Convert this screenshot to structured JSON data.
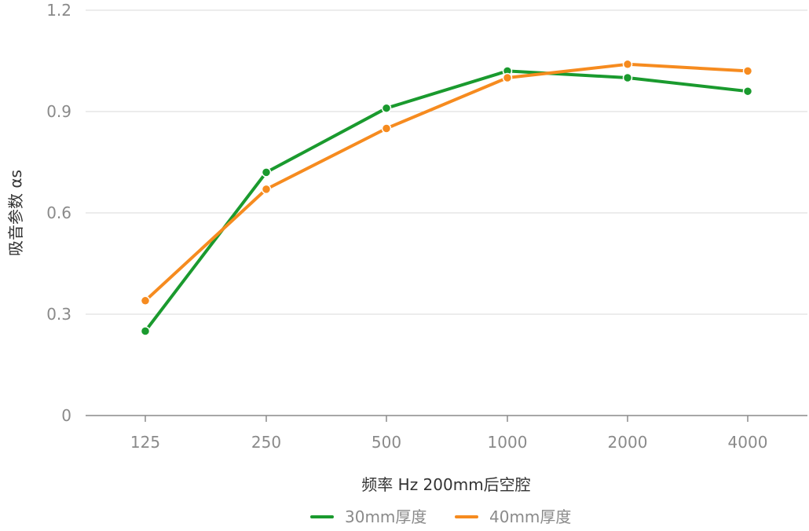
{
  "chart_data": {
    "type": "line",
    "title": "",
    "xlabel": "频率 Hz  200mm后空腔",
    "ylabel": "吸音参数 αs",
    "categories": [
      "125",
      "250",
      "500",
      "1000",
      "2000",
      "4000"
    ],
    "ylim": [
      0,
      1.2
    ],
    "yticks": [
      "0",
      "0.3",
      "0.6",
      "0.9",
      "1.2"
    ],
    "grid": true,
    "legend_position": "bottom",
    "series": [
      {
        "name": "30mm厚度",
        "color": "#1a9a2e",
        "values": [
          0.25,
          0.72,
          0.91,
          1.02,
          1.0,
          0.96
        ]
      },
      {
        "name": "40mm厚度",
        "color": "#f68b1f",
        "values": [
          0.34,
          0.67,
          0.85,
          1.0,
          1.04,
          1.02
        ]
      }
    ]
  }
}
